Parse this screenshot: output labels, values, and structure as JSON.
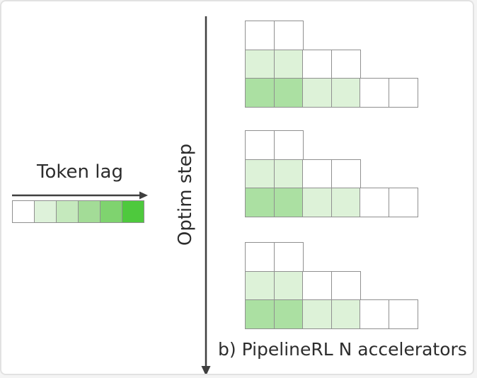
{
  "figure": {
    "caption": "b) PipelineRL N accelerators",
    "background": "#ffffff",
    "frame_border_color": "#e2e2e2",
    "text_color": "#2d2d2d",
    "arrow_color": "#3f3f3f"
  },
  "legend": {
    "title": "Token lag",
    "arrow_direction": "right",
    "cells": [
      "#ffffff",
      "#def2da",
      "#c5e9bd",
      "#a3dc97",
      "#7fd36f",
      "#4ec93d"
    ]
  },
  "axis": {
    "label": "Optim step",
    "arrow_direction": "down"
  },
  "grid": {
    "cell_border_color": "#909090",
    "cell_colors": [
      "#ffffff",
      "#ddf2d8",
      "#abe0a2"
    ],
    "rows": [
      [
        0,
        0
      ],
      [
        1,
        1,
        0,
        0
      ],
      [
        2,
        2,
        1,
        1,
        0,
        0
      ]
    ],
    "group_count": 3
  }
}
